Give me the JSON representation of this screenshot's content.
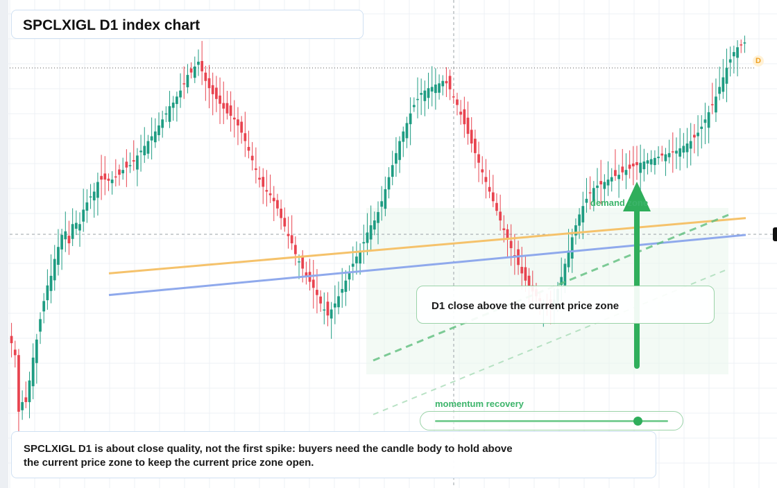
{
  "title": "SPCLXIGL D1 index chart",
  "annotation": "D1 close above the current price zone",
  "note": "SPCLXIGL D1 is about close quality, not the first spike: buyers need the candle body to hold above the current price zone to keep the current price zone open.",
  "momentum": {
    "label": "momentum recovery",
    "level": 0.87
  },
  "demand_label": "demand zone",
  "badge": "D",
  "colors": {
    "up": "#1e9c82",
    "down": "#e8434f",
    "orange_line": "#f5c26b",
    "blue_line": "#8fa9ec",
    "green": "#2fae5b"
  },
  "chart_data": {
    "type": "candlestick",
    "title": "SPCLXIGL D1 index chart",
    "ylim": [
      -250,
      90
    ],
    "grid": true,
    "closes": [
      -178,
      -188,
      -235,
      -227,
      -227,
      -209,
      -190,
      -175,
      -158,
      -143,
      -130,
      -122,
      -108,
      -98,
      -88,
      -85,
      -95,
      -79,
      -78,
      -79,
      -67,
      -61,
      -56,
      -52,
      -44,
      -42,
      -42,
      -43,
      -42,
      -40,
      -38,
      -34,
      -32,
      -30,
      -27,
      -22,
      -18,
      -14,
      -10,
      -6,
      -2,
      3,
      8,
      13,
      19,
      22,
      27,
      32,
      38,
      45,
      47,
      52,
      56,
      48,
      40,
      34,
      29,
      25,
      21,
      17,
      13,
      11,
      8,
      3,
      -3,
      -10,
      -18,
      -26,
      -34,
      -42,
      -48,
      -52,
      -55,
      -60,
      -66,
      -74,
      -81,
      -89,
      -95,
      -104,
      -110,
      -116,
      -122,
      -127,
      -132,
      -138,
      -145,
      -150,
      -155,
      -150,
      -145,
      -139,
      -133,
      -126,
      -119,
      -112,
      -106,
      -101,
      -94,
      -86,
      -80,
      -76,
      -69,
      -60,
      -50,
      -40,
      -30,
      -20,
      -10,
      -2,
      5,
      13,
      20,
      25,
      30,
      32,
      34,
      35,
      37,
      38,
      40,
      38,
      33,
      27,
      20,
      12,
      4,
      -4,
      -12,
      -20,
      -28,
      -36,
      -44,
      -52,
      -60,
      -68,
      -76,
      -84,
      -92,
      -99,
      -106,
      -113,
      -120,
      -126,
      -131,
      -135,
      -139,
      -143,
      -146,
      -148,
      -148,
      -142,
      -133,
      -123,
      -112,
      -101,
      -90,
      -80,
      -71,
      -64,
      -58,
      -53,
      -49,
      -47,
      -46,
      -44,
      -42,
      -40,
      -39,
      -38,
      -36,
      -34,
      -33,
      -31,
      -30,
      -28,
      -27,
      -26,
      -25,
      -24,
      -23,
      -22,
      -21,
      -20,
      -19,
      -18,
      -16,
      -14,
      -12,
      -10,
      -7,
      -3,
      2,
      8,
      14,
      20,
      27,
      35,
      43,
      51,
      58,
      64,
      68,
      70,
      72
    ],
    "series": [
      {
        "name": "",
        "color": "orange",
        "points": [
          [
            0,
            -120
          ],
          [
            1,
            -74
          ]
        ]
      },
      {
        "name": "",
        "color": "blue",
        "points": [
          [
            0,
            -138
          ],
          [
            1,
            -88
          ]
        ]
      }
    ]
  }
}
